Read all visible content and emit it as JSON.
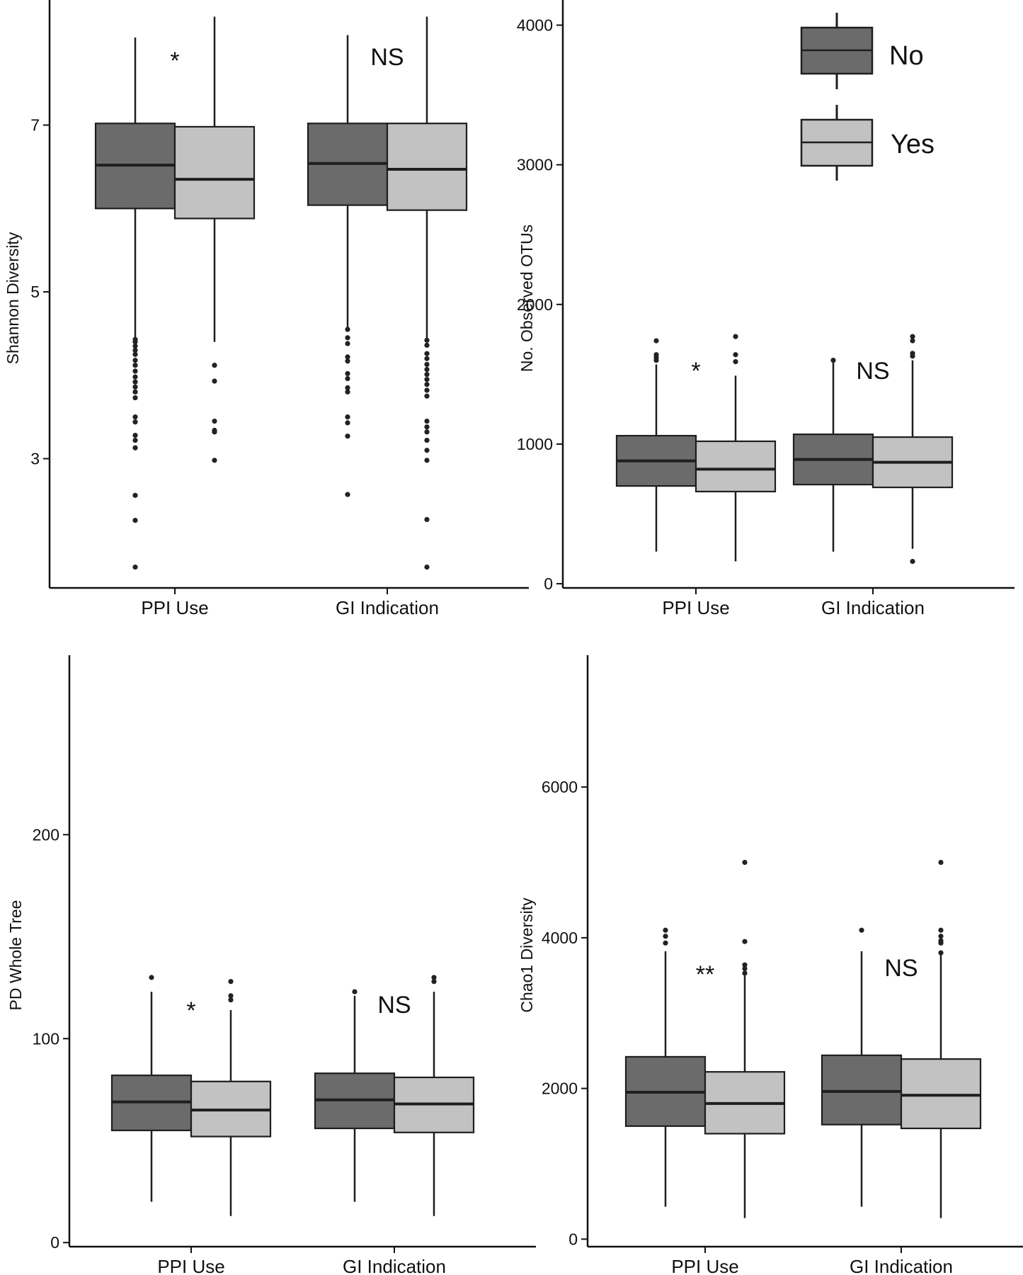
{
  "legend": {
    "placement": "top-right",
    "entries": [
      {
        "label": "No",
        "color": "#6b6b6b"
      },
      {
        "label": "Yes",
        "color": "#c2c2c2"
      }
    ]
  },
  "colors": {
    "no": "#6b6b6b",
    "yes": "#c2c2c2",
    "stroke": "#1e1e1e"
  },
  "chart_data": [
    {
      "type": "boxplot",
      "ylabel": "Shannon Diversity",
      "ylim": [
        1.45,
        8.5
      ],
      "yticks": [
        3,
        5,
        7
      ],
      "categories": [
        "PPI Use",
        "GI Indication"
      ],
      "significance": [
        "*",
        "NS"
      ],
      "series": [
        {
          "name": "No",
          "boxes": [
            {
              "whisker_low": 4.4,
              "q1": 6.0,
              "median": 6.52,
              "q3": 7.02,
              "whisker_high": 8.05,
              "outliers": [
                4.43,
                4.4,
                4.35,
                4.3,
                4.25,
                4.18,
                4.12,
                4.05,
                3.98,
                3.92,
                3.86,
                3.8,
                3.73,
                3.5,
                3.44,
                3.28,
                3.22,
                3.13,
                2.56,
                2.26,
                1.7
              ]
            },
            {
              "whisker_low": 4.55,
              "q1": 6.04,
              "median": 6.54,
              "q3": 7.02,
              "whisker_high": 8.08,
              "outliers": [
                4.55,
                4.45,
                4.38,
                4.22,
                4.17,
                4.02,
                3.96,
                3.85,
                3.8,
                3.5,
                3.43,
                3.27,
                2.57
              ]
            }
          ]
        },
        {
          "name": "Yes",
          "boxes": [
            {
              "whisker_low": 4.4,
              "q1": 5.88,
              "median": 6.35,
              "q3": 6.98,
              "whisker_high": 8.3,
              "outliers": [
                4.12,
                3.93,
                3.45,
                3.34,
                3.32,
                2.98
              ]
            },
            {
              "whisker_low": 4.42,
              "q1": 5.98,
              "median": 6.47,
              "q3": 7.02,
              "whisker_high": 8.3,
              "outliers": [
                4.42,
                4.36,
                4.26,
                4.2,
                4.13,
                4.07,
                4.01,
                3.95,
                3.89,
                3.82,
                3.75,
                3.45,
                3.38,
                3.32,
                3.22,
                3.1,
                2.98,
                2.27,
                1.7
              ]
            }
          ]
        }
      ]
    },
    {
      "type": "boxplot",
      "ylabel": "No. Observed OTUs",
      "ylim": [
        -30,
        4180
      ],
      "yticks": [
        0,
        1000,
        2000,
        3000,
        4000
      ],
      "categories": [
        "PPI Use",
        "GI Indication"
      ],
      "significance": [
        "*",
        "NS"
      ],
      "series": [
        {
          "name": "No",
          "boxes": [
            {
              "whisker_low": 230,
              "q1": 700,
              "median": 880,
              "q3": 1060,
              "whisker_high": 1570,
              "outliers": [
                1740,
                1640,
                1620,
                1600
              ]
            },
            {
              "whisker_low": 230,
              "q1": 710,
              "median": 890,
              "q3": 1070,
              "whisker_high": 1600,
              "outliers": [
                1600
              ]
            }
          ]
        },
        {
          "name": "Yes",
          "boxes": [
            {
              "whisker_low": 160,
              "q1": 660,
              "median": 820,
              "q3": 1020,
              "whisker_high": 1490,
              "outliers": [
                1770,
                1640,
                1590
              ]
            },
            {
              "whisker_low": 250,
              "q1": 690,
              "median": 870,
              "q3": 1050,
              "whisker_high": 1600,
              "outliers": [
                1770,
                1740,
                1650,
                1630,
                160
              ]
            }
          ]
        }
      ]
    },
    {
      "type": "boxplot",
      "ylabel": "PD Whole Tree",
      "ylim": [
        -2,
        288
      ],
      "yticks": [
        0,
        100,
        200
      ],
      "categories": [
        "PPI Use",
        "GI Indication"
      ],
      "significance": [
        "*",
        "NS"
      ],
      "series": [
        {
          "name": "No",
          "boxes": [
            {
              "whisker_low": 20,
              "q1": 55,
              "median": 69,
              "q3": 82,
              "whisker_high": 123,
              "outliers": [
                130
              ]
            },
            {
              "whisker_low": 20,
              "q1": 56,
              "median": 70,
              "q3": 83,
              "whisker_high": 121,
              "outliers": [
                123
              ]
            }
          ]
        },
        {
          "name": "Yes",
          "boxes": [
            {
              "whisker_low": 13,
              "q1": 52,
              "median": 65,
              "q3": 79,
              "whisker_high": 114,
              "outliers": [
                128,
                121,
                119
              ]
            },
            {
              "whisker_low": 13,
              "q1": 54,
              "median": 68,
              "q3": 81,
              "whisker_high": 123,
              "outliers": [
                130,
                128
              ]
            }
          ]
        }
      ]
    },
    {
      "type": "boxplot",
      "ylabel": "Chao1 Diversity",
      "ylim": [
        -100,
        7750
      ],
      "yticks": [
        0,
        2000,
        4000,
        6000
      ],
      "categories": [
        "PPI Use",
        "GI Indication"
      ],
      "significance": [
        "**",
        "NS"
      ],
      "series": [
        {
          "name": "No",
          "boxes": [
            {
              "whisker_low": 430,
              "q1": 1500,
              "median": 1950,
              "q3": 2420,
              "whisker_high": 3820,
              "outliers": [
                4100,
                4020,
                3930
              ]
            },
            {
              "whisker_low": 430,
              "q1": 1520,
              "median": 1960,
              "q3": 2440,
              "whisker_high": 3820,
              "outliers": [
                4100
              ]
            }
          ]
        },
        {
          "name": "Yes",
          "boxes": [
            {
              "whisker_low": 280,
              "q1": 1400,
              "median": 1800,
              "q3": 2220,
              "whisker_high": 3500,
              "outliers": [
                5000,
                3950,
                3640,
                3590,
                3530
              ]
            },
            {
              "whisker_low": 280,
              "q1": 1470,
              "median": 1910,
              "q3": 2390,
              "whisker_high": 3780,
              "outliers": [
                5000,
                4100,
                4020,
                3960,
                3930,
                3800
              ]
            }
          ]
        }
      ]
    }
  ]
}
